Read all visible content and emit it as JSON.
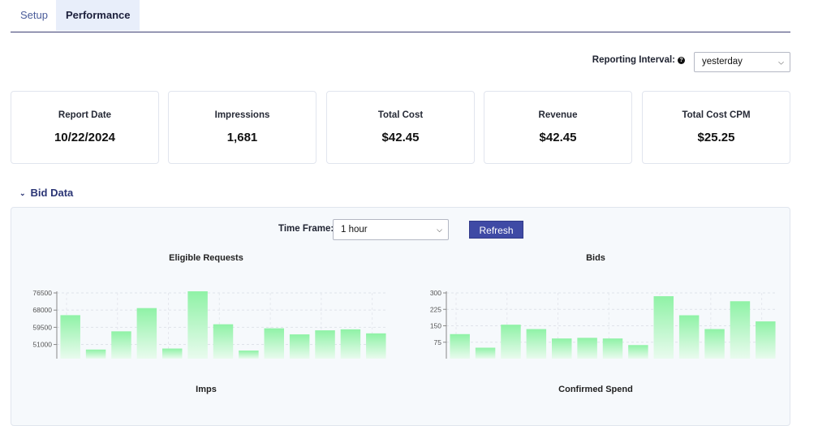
{
  "tabs": [
    {
      "label": "Setup"
    },
    {
      "label": "Performance"
    }
  ],
  "reporting": {
    "label": "Reporting Interval:",
    "value": "yesterday"
  },
  "cards": [
    {
      "label": "Report Date",
      "value": "10/22/2024"
    },
    {
      "label": "Impressions",
      "value": "1,681"
    },
    {
      "label": "Total Cost",
      "value": "$42.45"
    },
    {
      "label": "Revenue",
      "value": "$42.45"
    },
    {
      "label": "Total Cost CPM",
      "value": "$25.25"
    }
  ],
  "bid_section": {
    "title": "Bid Data",
    "timeframe_label": "Time Frame:",
    "timeframe_value": "1 hour",
    "refresh_label": "Refresh"
  },
  "charts": [
    {
      "title": "Eligible Requests"
    },
    {
      "title": "Bids"
    },
    {
      "title": "Imps"
    },
    {
      "title": "Confirmed Spend"
    }
  ],
  "chart_data": [
    {
      "type": "bar",
      "title": "Eligible Requests",
      "ylim": [
        44000,
        76500
      ],
      "yticks": [
        51000,
        59500,
        68000,
        76500
      ],
      "values": [
        65500,
        48500,
        57500,
        69000,
        49000,
        77500,
        61000,
        48000,
        59000,
        56000,
        58000,
        58500,
        56500
      ],
      "colors": {
        "bar_top": "#8ff2a6",
        "bar_bottom": "#e9fbee"
      }
    },
    {
      "type": "bar",
      "title": "Bids",
      "ylim": [
        0,
        300
      ],
      "yticks": [
        75,
        150,
        225,
        300
      ],
      "values": [
        112,
        50,
        155,
        135,
        92,
        95,
        92,
        62,
        285,
        198,
        135,
        262,
        170
      ],
      "colors": {
        "bar_top": "#8ff2a6",
        "bar_bottom": "#e9fbee"
      }
    }
  ]
}
